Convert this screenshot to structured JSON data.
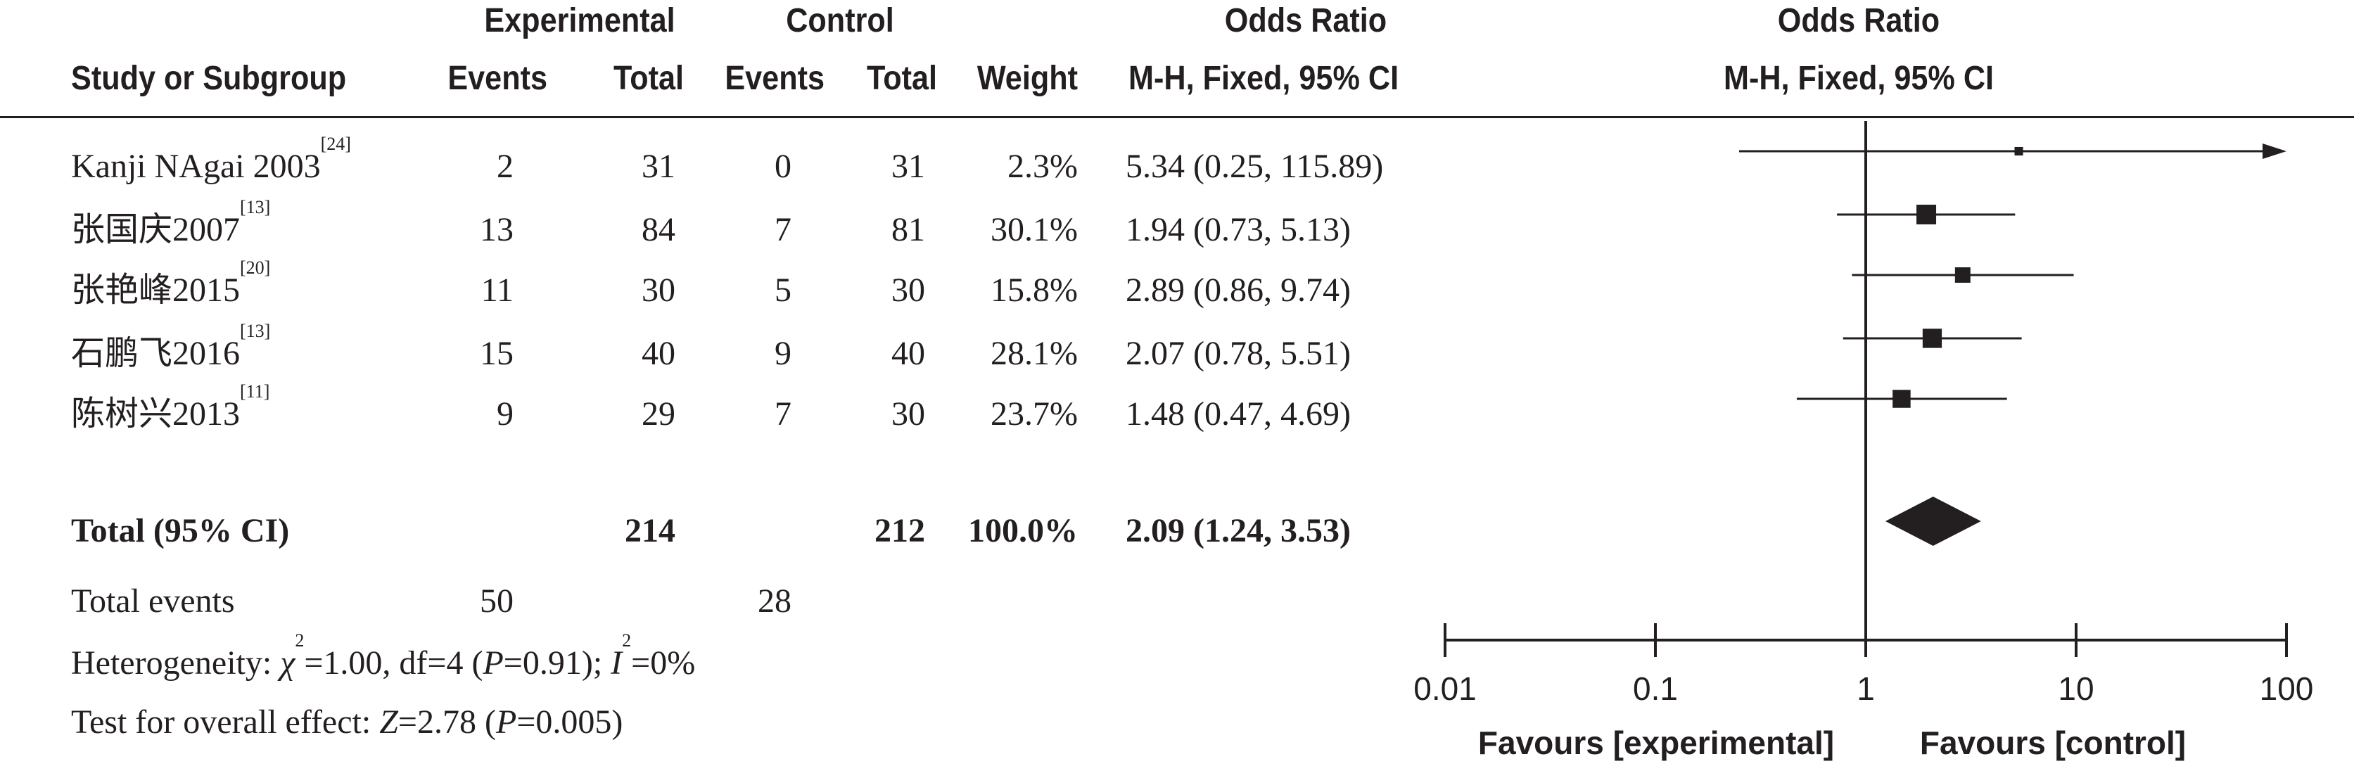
{
  "headers": {
    "group_experimental": "Experimental",
    "group_control": "Control",
    "group_or_left": "Odds Ratio",
    "group_or_right": "Odds Ratio",
    "study": "Study or Subgroup",
    "exp_events": "Events",
    "exp_total": "Total",
    "ctl_events": "Events",
    "ctl_total": "Total",
    "weight": "Weight",
    "method_left": "M-H, Fixed, 95% CI",
    "method_right": "M-H, Fixed, 95% CI"
  },
  "studies": [
    {
      "name": "Kanji NAgai 2003",
      "ref": "[24]",
      "exp_events": "2",
      "exp_total": "31",
      "ctl_events": "0",
      "ctl_total": "31",
      "weight": "2.3%",
      "ci_text": "5.34 (0.25, 115.89)"
    },
    {
      "name": "张国庆2007",
      "ref": "[13]",
      "exp_events": "13",
      "exp_total": "84",
      "ctl_events": "7",
      "ctl_total": "81",
      "weight": "30.1%",
      "ci_text": "1.94 (0.73, 5.13)"
    },
    {
      "name": "张艳峰2015",
      "ref": "[20]",
      "exp_events": "11",
      "exp_total": "30",
      "ctl_events": "5",
      "ctl_total": "30",
      "weight": "15.8%",
      "ci_text": "2.89 (0.86, 9.74)"
    },
    {
      "name": "石鹏飞2016",
      "ref": "[13]",
      "exp_events": "15",
      "exp_total": "40",
      "ctl_events": "9",
      "ctl_total": "40",
      "weight": "28.1%",
      "ci_text": "2.07 (0.78, 5.51)"
    },
    {
      "name": "陈树兴2013",
      "ref": "[11]",
      "exp_events": "9",
      "exp_total": "29",
      "ctl_events": "7",
      "ctl_total": "30",
      "weight": "23.7%",
      "ci_text": "1.48 (0.47, 4.69)"
    }
  ],
  "total": {
    "label": "Total (95% CI)",
    "exp_total": "214",
    "ctl_total": "212",
    "weight": "100.0%",
    "ci_text": "2.09 (1.24, 3.53)"
  },
  "total_events": {
    "label": "Total events",
    "exp": "50",
    "ctl": "28"
  },
  "heterogeneity": {
    "prefix": "Heterogeneity: ",
    "chi_symbol": "χ",
    "chi_rest": "=1.00, df=4 (",
    "p_symbol": "P",
    "p_rest": "=0.91); ",
    "i_symbol": "I",
    "i_rest": "=0%"
  },
  "overall_effect": {
    "prefix": "Test for overall effect: ",
    "z_symbol": "Z",
    "z_rest": "=2.78 (",
    "p_symbol": "P",
    "p_rest": "=0.005)"
  },
  "chart_data": {
    "type": "forest",
    "scale": "log",
    "xlim": [
      0.01,
      100
    ],
    "ticks": [
      0.01,
      0.1,
      1,
      10,
      100
    ],
    "tick_labels": [
      "0.01",
      "0.1",
      "1",
      "10",
      "100"
    ],
    "null_line": 1,
    "favours_left": "Favours [experimental]",
    "favours_right": "Favours [control]",
    "studies": [
      {
        "or": 5.34,
        "lower": 0.25,
        "upper": 115.89,
        "weight": 2.3
      },
      {
        "or": 1.94,
        "lower": 0.73,
        "upper": 5.13,
        "weight": 30.1
      },
      {
        "or": 2.89,
        "lower": 0.86,
        "upper": 9.74,
        "weight": 15.8
      },
      {
        "or": 2.07,
        "lower": 0.78,
        "upper": 5.51,
        "weight": 28.1
      },
      {
        "or": 1.48,
        "lower": 0.47,
        "upper": 4.69,
        "weight": 23.7
      }
    ],
    "pooled": {
      "or": 2.09,
      "lower": 1.24,
      "upper": 3.53
    }
  }
}
